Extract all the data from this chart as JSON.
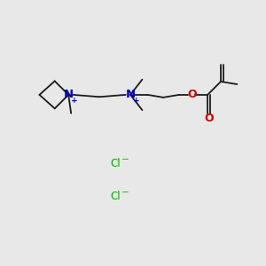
{
  "bg_color": "#e8e8e8",
  "line_color": "#1a1a1a",
  "N_color": "#0000bb",
  "O_color": "#cc0000",
  "Cl_color": "#00aa00",
  "lw": 1.3,
  "fs": 8.0,
  "figsize": [
    3.0,
    3.0
  ],
  "dpi": 100,
  "N1": [
    2.55,
    6.45
  ],
  "N2": [
    4.9,
    6.45
  ],
  "xlim": [
    0,
    10
  ],
  "ylim": [
    0,
    10
  ]
}
